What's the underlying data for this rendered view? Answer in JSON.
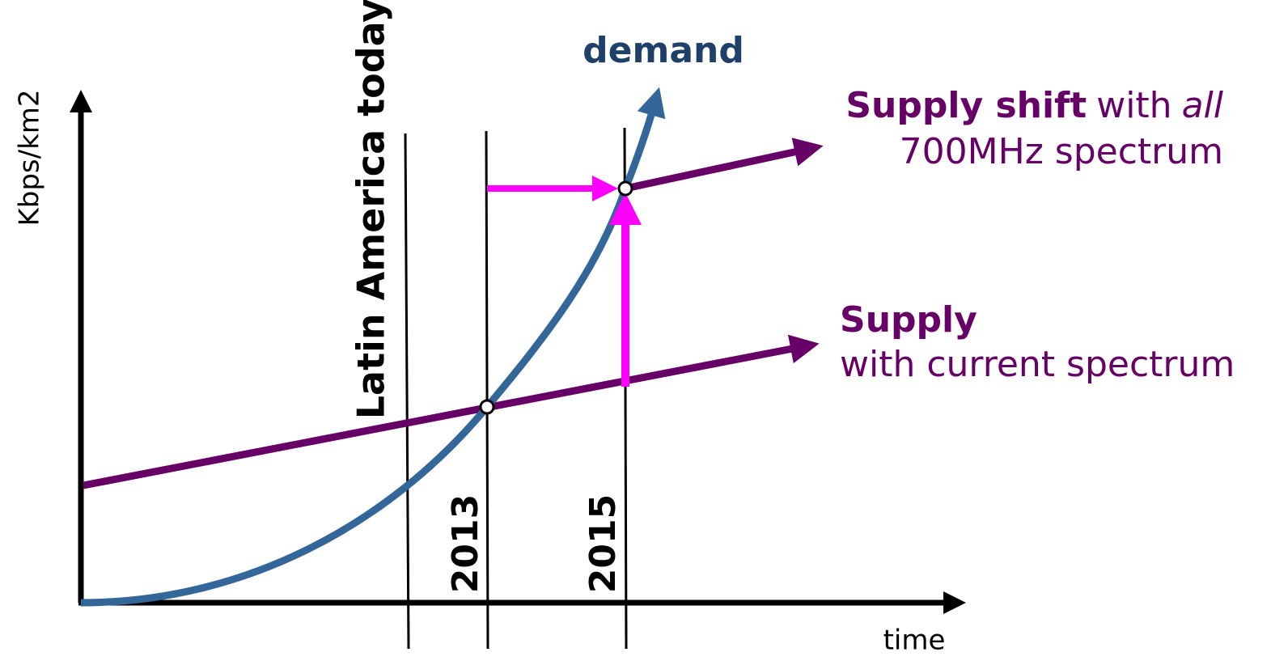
{
  "y_axis": {
    "label": "Kbps/km2"
  },
  "x_axis": {
    "label": "time"
  },
  "markers": {
    "today": "Latin America today",
    "year_a": "2013",
    "year_b": "2015"
  },
  "demand": {
    "label": "demand"
  },
  "supply_shift": {
    "bold": "Supply shift",
    "normal": "with",
    "italic": "all",
    "line2": "700MHz spectrum"
  },
  "supply": {
    "bold": "Supply",
    "line2": "with current spectrum"
  }
}
